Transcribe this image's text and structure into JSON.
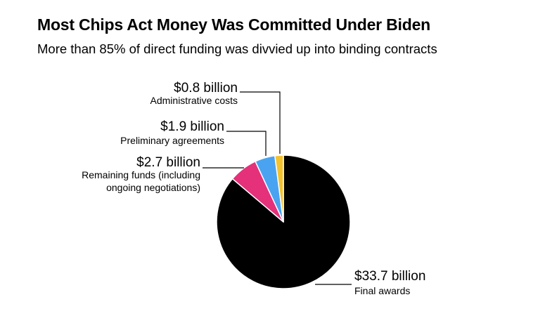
{
  "header": {
    "title": "Most Chips Act Money Was Committed Under Biden",
    "subtitle": "More than 85% of direct funding was divvied up into binding contracts"
  },
  "chart_data": {
    "type": "pie",
    "unit": "billion USD",
    "slices": [
      {
        "label": "Final awards",
        "value": 33.7,
        "value_text": "$33.7 billion",
        "desc_lines": [
          "Final awards"
        ],
        "color": "#000000"
      },
      {
        "label": "Remaining funds (including ongoing negotiations)",
        "value": 2.7,
        "value_text": "$2.7 billion",
        "desc_lines": [
          "Remaining funds (including",
          "ongoing negotiations)"
        ],
        "color": "#e5307a"
      },
      {
        "label": "Preliminary agreements",
        "value": 1.9,
        "value_text": "$1.9 billion",
        "desc_lines": [
          "Preliminary agreements"
        ],
        "color": "#4aa3f0"
      },
      {
        "label": "Administrative costs",
        "value": 0.8,
        "value_text": "$0.8 billion",
        "desc_lines": [
          "Administrative costs"
        ],
        "color": "#f3c230"
      }
    ]
  }
}
